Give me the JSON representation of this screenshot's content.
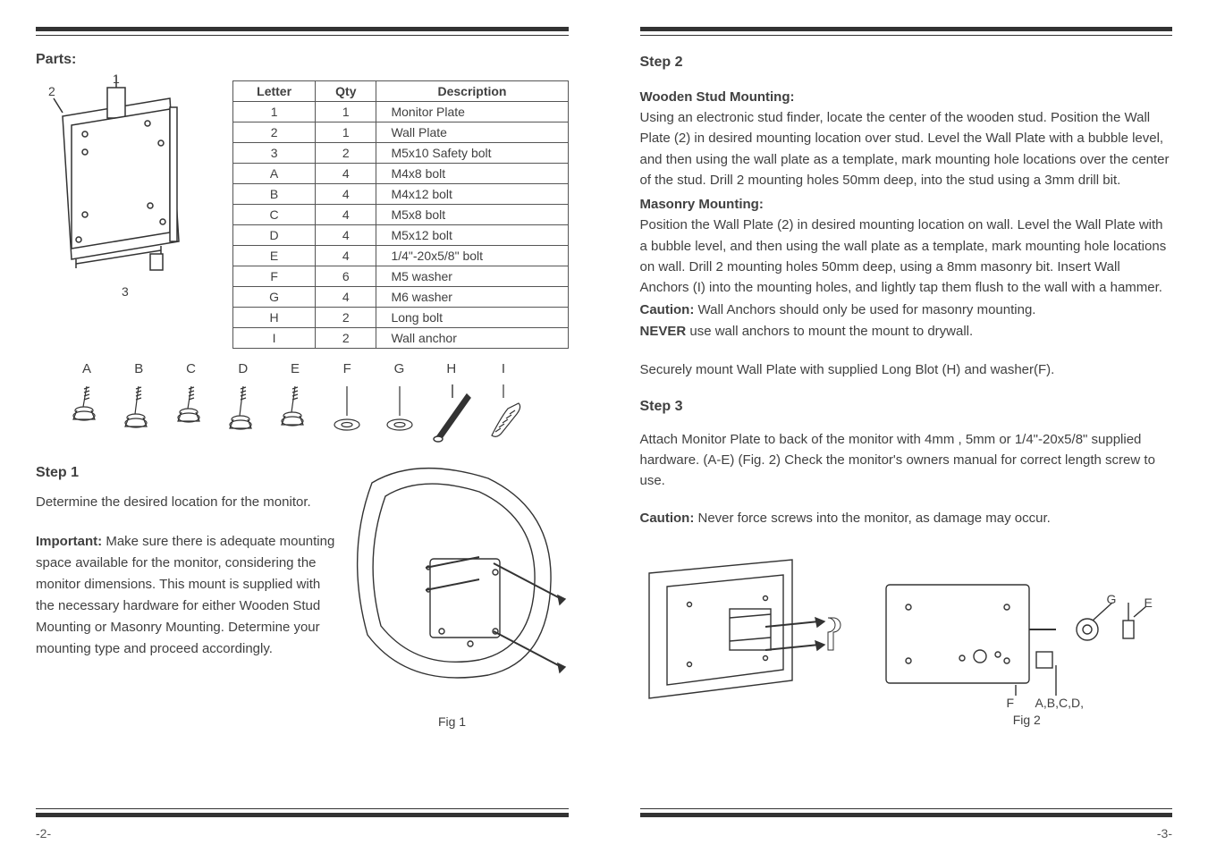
{
  "left": {
    "parts_label": "Parts:",
    "diagram_labels": {
      "n1": "1",
      "n2": "2",
      "n3": "3"
    },
    "table": {
      "headers": [
        "Letter",
        "Qty",
        "Description"
      ],
      "rows": [
        [
          "1",
          "1",
          "Monitor Plate"
        ],
        [
          "2",
          "1",
          "Wall Plate"
        ],
        [
          "3",
          "2",
          "M5x10 Safety bolt"
        ],
        [
          "A",
          "4",
          "M4x8 bolt"
        ],
        [
          "B",
          "4",
          "M4x12 bolt"
        ],
        [
          "C",
          "4",
          "M5x8 bolt"
        ],
        [
          "D",
          "4",
          "M5x12 bolt"
        ],
        [
          "E",
          "4",
          "1/4\"-20x5/8\" bolt"
        ],
        [
          "F",
          "6",
          "M5 washer"
        ],
        [
          "G",
          "4",
          "M6 washer"
        ],
        [
          "H",
          "2",
          "Long bolt"
        ],
        [
          "I",
          "2",
          "Wall anchor"
        ]
      ]
    },
    "hw_labels": [
      "A",
      "B",
      "C",
      "D",
      "E",
      "F",
      "G",
      "H",
      "I"
    ],
    "step1_heading": "Step 1",
    "step1_p1": "Determine the desired location for the monitor.",
    "step1_important_label": "Important:",
    "step1_important_text": " Make sure there is adequate mounting space available for the monitor, considering the monitor dimensions. This mount is supplied with the necessary hardware for either Wooden Stud Mounting or Masonry Mounting. Determine your mounting type and proceed accordingly.",
    "fig1_caption": "Fig 1",
    "page_num": "-2-"
  },
  "right": {
    "step2_heading": "Step 2",
    "wood_head": "Wooden Stud Mounting:",
    "wood_text": "Using an electronic stud finder, locate the center of the wooden stud. Position the Wall Plate (2) in desired mounting location over stud. Level the Wall Plate with a bubble level, and then using the wall plate as a template, mark mounting hole locations over the center of the stud. Drill 2 mounting holes 50mm deep, into the stud using a 3mm drill bit.",
    "mas_head": "Masonry Mounting:",
    "mas_text": "Position the Wall Plate (2) in desired mounting location on wall. Level the Wall Plate with a bubble level, and then using the wall plate as a template, mark mounting hole locations on wall. Drill 2 mounting holes 50mm deep, using a 8mm masonry bit. Insert Wall Anchors (I) into the mounting holes, and lightly tap them flush to the wall with a hammer.",
    "caution1_label": "Caution:",
    "caution1_text": " Wall Anchors should only be used for masonry mounting.",
    "never_label": "NEVER",
    "never_text": " use wall anchors to mount the mount to drywall.",
    "secure_text": "Securely mount Wall Plate with supplied Long Blot (H) and washer(F).",
    "step3_heading": "Step 3",
    "step3_text": "Attach Monitor Plate to back of the monitor with 4mm , 5mm or 1/4\"-20x5/8\" supplied hardware. (A-E) (Fig. 2) Check the monitor's owners manual for correct length screw to use.",
    "caution2_label": "Caution:",
    "caution2_text": " Never force screws into the monitor, as damage may occur.",
    "fig2_caption": "Fig 2",
    "fig2_labels": {
      "F": "F",
      "ABCD": "A,B,C,D,",
      "G": "G",
      "E": "E"
    },
    "page_num": "-3-"
  },
  "colors": {
    "stroke": "#333333",
    "fill_none": "none"
  }
}
